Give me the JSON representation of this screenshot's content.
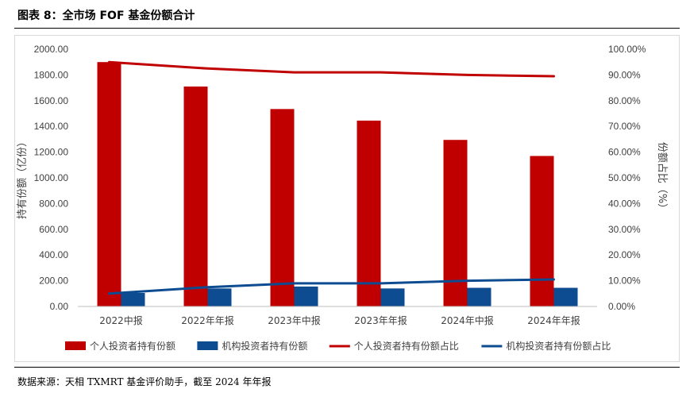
{
  "header": {
    "title": "图表 8：全市场 FOF 基金份额合计"
  },
  "footer": {
    "source": "数据来源：天相 TXMRT 基金评价助手，截至 2024 年年报"
  },
  "chart_data": {
    "type": "bar",
    "title": "",
    "categories": [
      "2022中报",
      "2022年年报",
      "2023年中报",
      "2023年年报",
      "2024年中报",
      "2024年年报"
    ],
    "ylabel": "持有份额（亿份）",
    "y2label": "份额占比（%）",
    "ylim": [
      0,
      2000
    ],
    "y2lim": [
      0,
      100
    ],
    "yticks": [
      "0.00",
      "200.00",
      "400.00",
      "600.00",
      "800.00",
      "1000.00",
      "1200.00",
      "1400.00",
      "1600.00",
      "1800.00",
      "2000.00"
    ],
    "y2ticks": [
      "0.00%",
      "10.00%",
      "20.00%",
      "30.00%",
      "40.00%",
      "50.00%",
      "60.00%",
      "70.00%",
      "80.00%",
      "90.00%",
      "100.00%"
    ],
    "series": [
      {
        "name": "个人投资者持有份额",
        "type": "bar",
        "axis": "left",
        "color": "#C00000",
        "values": [
          1900,
          1710,
          1535,
          1445,
          1295,
          1170
        ]
      },
      {
        "name": "机构投资者持有份额",
        "type": "bar",
        "axis": "left",
        "color": "#0E4C92",
        "values": [
          105,
          140,
          155,
          140,
          145,
          145
        ]
      },
      {
        "name": "个人投资者持有份额占比",
        "type": "line",
        "axis": "right",
        "color": "#C00000",
        "values": [
          95.0,
          92.5,
          91.0,
          91.0,
          90.0,
          89.5
        ]
      },
      {
        "name": "机构投资者持有份额占比",
        "type": "line",
        "axis": "right",
        "color": "#0E4C92",
        "values": [
          5.0,
          7.5,
          9.0,
          9.0,
          10.0,
          10.5
        ]
      }
    ],
    "legend": "bottom",
    "grid": false
  }
}
